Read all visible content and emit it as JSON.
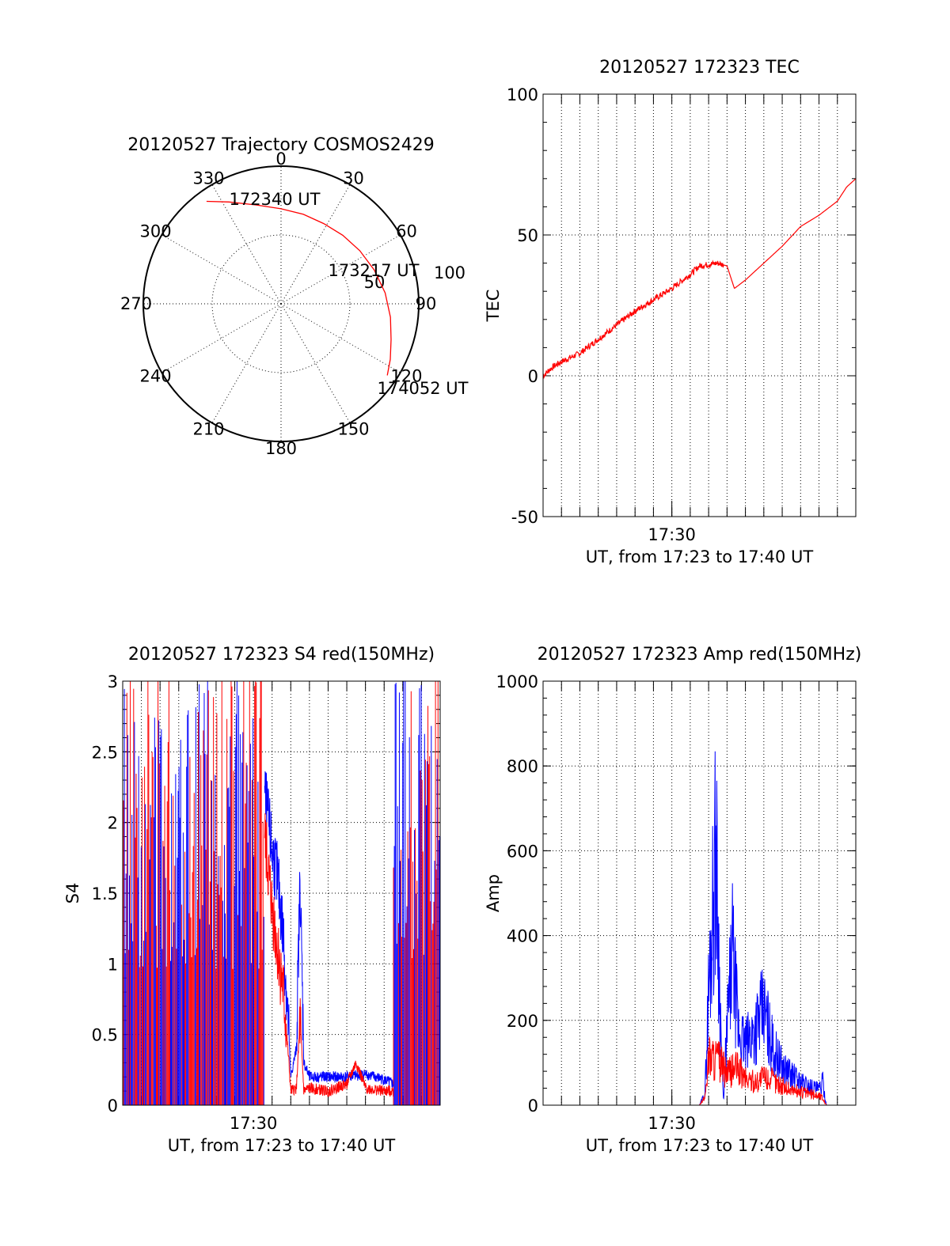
{
  "colors": {
    "red": "#ff0000",
    "blue": "#0000ff",
    "axis": "#000000",
    "background": "#ffffff"
  },
  "chart_data": [
    {
      "id": "trajectory",
      "type": "polar",
      "title": "20120527 Trajectory COSMOS2429",
      "angle_labels": [
        "0",
        "30",
        "60",
        "90",
        "120",
        "150",
        "180",
        "210",
        "240",
        "270",
        "300",
        "330"
      ],
      "radial_labels": [
        "50",
        "100"
      ],
      "rlim": [
        0,
        100
      ],
      "grid": true,
      "annotations": [
        "172340 UT",
        "173217 UT",
        "174052 UT"
      ],
      "series": [
        {
          "color": "red",
          "points": [
            {
              "az": 324,
              "r": 92
            },
            {
              "az": 333,
              "r": 83
            },
            {
              "az": 346,
              "r": 74
            },
            {
              "az": 0,
              "r": 69
            },
            {
              "az": 14,
              "r": 67
            },
            {
              "az": 28,
              "r": 66
            },
            {
              "az": 42,
              "r": 67
            },
            {
              "az": 56,
              "r": 69
            },
            {
              "az": 70,
              "r": 72
            },
            {
              "az": 84,
              "r": 76
            },
            {
              "az": 97,
              "r": 80
            },
            {
              "az": 108,
              "r": 84
            },
            {
              "az": 117,
              "r": 89
            },
            {
              "az": 124,
              "r": 93
            }
          ]
        }
      ]
    },
    {
      "id": "tec",
      "type": "line",
      "title": "20120527 172323 TEC",
      "xlabel": "UT, from 17:23 to 17:40 UT",
      "ylabel": "TEC",
      "x_tick_labels": [
        "17:30"
      ],
      "xlim": [
        0,
        17
      ],
      "ylim": [
        -50,
        100
      ],
      "y_ticks": [
        "-50",
        "0",
        "50",
        "100"
      ],
      "grid": true,
      "series": [
        {
          "color": "red",
          "x": [
            0,
            0.5,
            1,
            2,
            3,
            4,
            5,
            6,
            7,
            8,
            8.5,
            9,
            9.5,
            10,
            10.2,
            10.4,
            11,
            12,
            13,
            14,
            15,
            16,
            16.5,
            17
          ],
          "y": [
            0,
            3,
            5,
            8,
            13,
            18,
            23,
            27,
            31,
            36,
            39,
            39.5,
            40,
            39,
            35,
            31,
            34,
            40,
            46,
            53,
            57,
            62,
            67,
            70
          ]
        }
      ]
    },
    {
      "id": "s4",
      "type": "line",
      "title": "20120527 172323 S4 red(150MHz)",
      "xlabel": "UT, from 17:23 to 17:40 UT",
      "ylabel": "S4",
      "x_tick_labels": [
        "17:30"
      ],
      "xlim": [
        0,
        17
      ],
      "ylim": [
        0,
        3
      ],
      "y_ticks": [
        "0",
        "0.5",
        "1",
        "1.5",
        "2",
        "2.5",
        "3"
      ],
      "grid": true,
      "series": [
        {
          "color": "blue",
          "x": [
            7.6,
            8.0,
            8.3,
            8.6,
            8.9,
            9.0,
            9.3,
            9.5,
            9.7,
            10,
            11,
            12,
            13,
            14,
            14.5
          ],
          "y": [
            2.2,
            1.8,
            1.6,
            1.2,
            0.5,
            0.2,
            0.4,
            1.6,
            0.3,
            0.2,
            0.2,
            0.2,
            0.22,
            0.18,
            0.15
          ]
        },
        {
          "color": "red",
          "x": [
            7.6,
            8.0,
            8.3,
            8.6,
            8.9,
            9.0,
            9.3,
            9.5,
            9.7,
            10,
            11,
            12,
            12.5,
            13,
            14,
            14.5
          ],
          "y": [
            1.9,
            1.4,
            1.1,
            0.8,
            0.3,
            0.1,
            0.12,
            0.6,
            0.1,
            0.12,
            0.1,
            0.15,
            0.3,
            0.12,
            0.1,
            0.1
          ]
        }
      ]
    },
    {
      "id": "amp",
      "type": "line",
      "title": "20120527 172323 Amp red(150MHz)",
      "xlabel": "UT, from 17:23 to 17:40 UT",
      "ylabel": "Amp",
      "x_tick_labels": [
        "17:30"
      ],
      "xlim": [
        0,
        17
      ],
      "ylim": [
        0,
        1000
      ],
      "y_ticks": [
        "0",
        "200",
        "400",
        "600",
        "800",
        "1000"
      ],
      "grid": true,
      "series": [
        {
          "color": "blue",
          "x": [
            0,
            8.5,
            8.8,
            9.0,
            9.2,
            9.4,
            9.6,
            9.8,
            10.0,
            10.3,
            10.6,
            11,
            11.5,
            12,
            12.5,
            13,
            13.5,
            14,
            14.5,
            15,
            15.2,
            15.4,
            17
          ],
          "y": [
            0,
            0,
            30,
            300,
            500,
            680,
            300,
            10,
            200,
            400,
            200,
            150,
            200,
            250,
            150,
            100,
            80,
            60,
            50,
            40,
            60,
            0,
            0
          ]
        },
        {
          "color": "red",
          "x": [
            0,
            8.5,
            8.8,
            9.0,
            9.5,
            10,
            10.5,
            11,
            11.5,
            12,
            12.5,
            13,
            13.5,
            14,
            14.5,
            15,
            15.2,
            15.4,
            17
          ],
          "y": [
            0,
            0,
            20,
            130,
            120,
            80,
            100,
            70,
            60,
            75,
            65,
            50,
            40,
            35,
            30,
            25,
            20,
            0,
            0
          ]
        }
      ]
    }
  ]
}
